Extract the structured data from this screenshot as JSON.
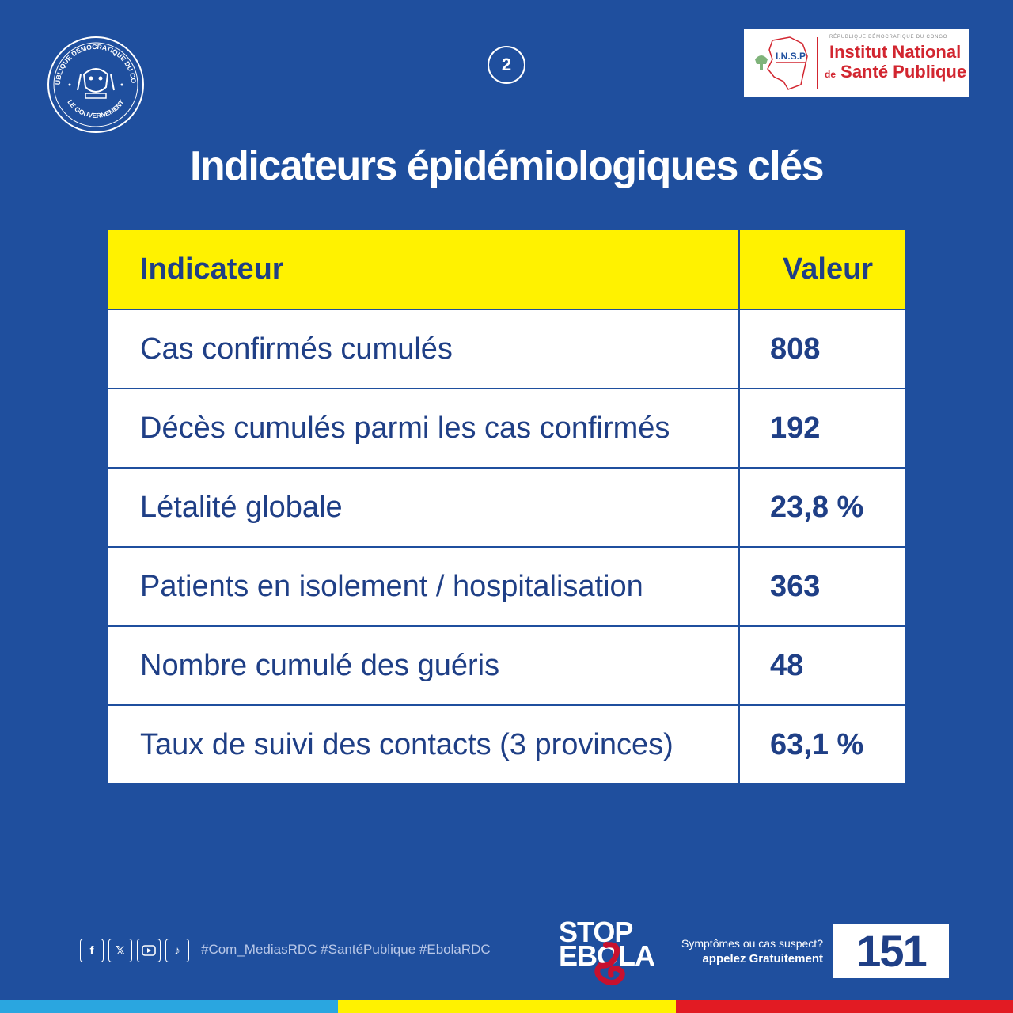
{
  "header": {
    "seal": {
      "top_text": "RÉPUBLIQUE DÉMOCRATIQUE DU CONGO",
      "bottom_text": "LE GOUVERNEMENT"
    },
    "page_number": "2",
    "insp": {
      "top_text": "RÉPUBLIQUE DÉMOCRATIQUE DU CONGO",
      "acronym": "I.N.S.P",
      "line1": "Institut National",
      "line2_prefix": "de",
      "line2": "Santé Publique"
    }
  },
  "title": "Indicateurs épidémiologiques clés",
  "table": {
    "headers": {
      "indicator": "Indicateur",
      "value": "Valeur"
    },
    "rows": [
      {
        "indicator": "Cas confirmés cumulés",
        "value": "808"
      },
      {
        "indicator": "Décès cumulés parmi les cas confirmés",
        "value": "192"
      },
      {
        "indicator": "Létalité globale",
        "value": "23,8 %"
      },
      {
        "indicator": "Patients en isolement / hospitalisation",
        "value": "363"
      },
      {
        "indicator": "Nombre cumulé des guéris",
        "value": "48"
      },
      {
        "indicator": "Taux de suivi des contacts (3 provinces)",
        "value": "63,1 %"
      }
    ]
  },
  "footer": {
    "social_icons": [
      "facebook-icon",
      "x-icon",
      "youtube-icon",
      "tiktok-icon"
    ],
    "hashtags": "#Com_MediasRDC #SantéPublique #EbolaRDC",
    "stop_line1": "STOP",
    "stop_line2": "EBOLA",
    "hotline_question": "Symptômes ou cas suspect?",
    "hotline_call": "appelez Gratuitement",
    "hotline_number": "151"
  },
  "colors": {
    "background": "#1f4f9e",
    "table_header": "#fff200",
    "text_dark_blue": "#1f3f86",
    "flag_blue": "#2aa6e0",
    "flag_yellow": "#fff200",
    "flag_red": "#e21b23"
  }
}
